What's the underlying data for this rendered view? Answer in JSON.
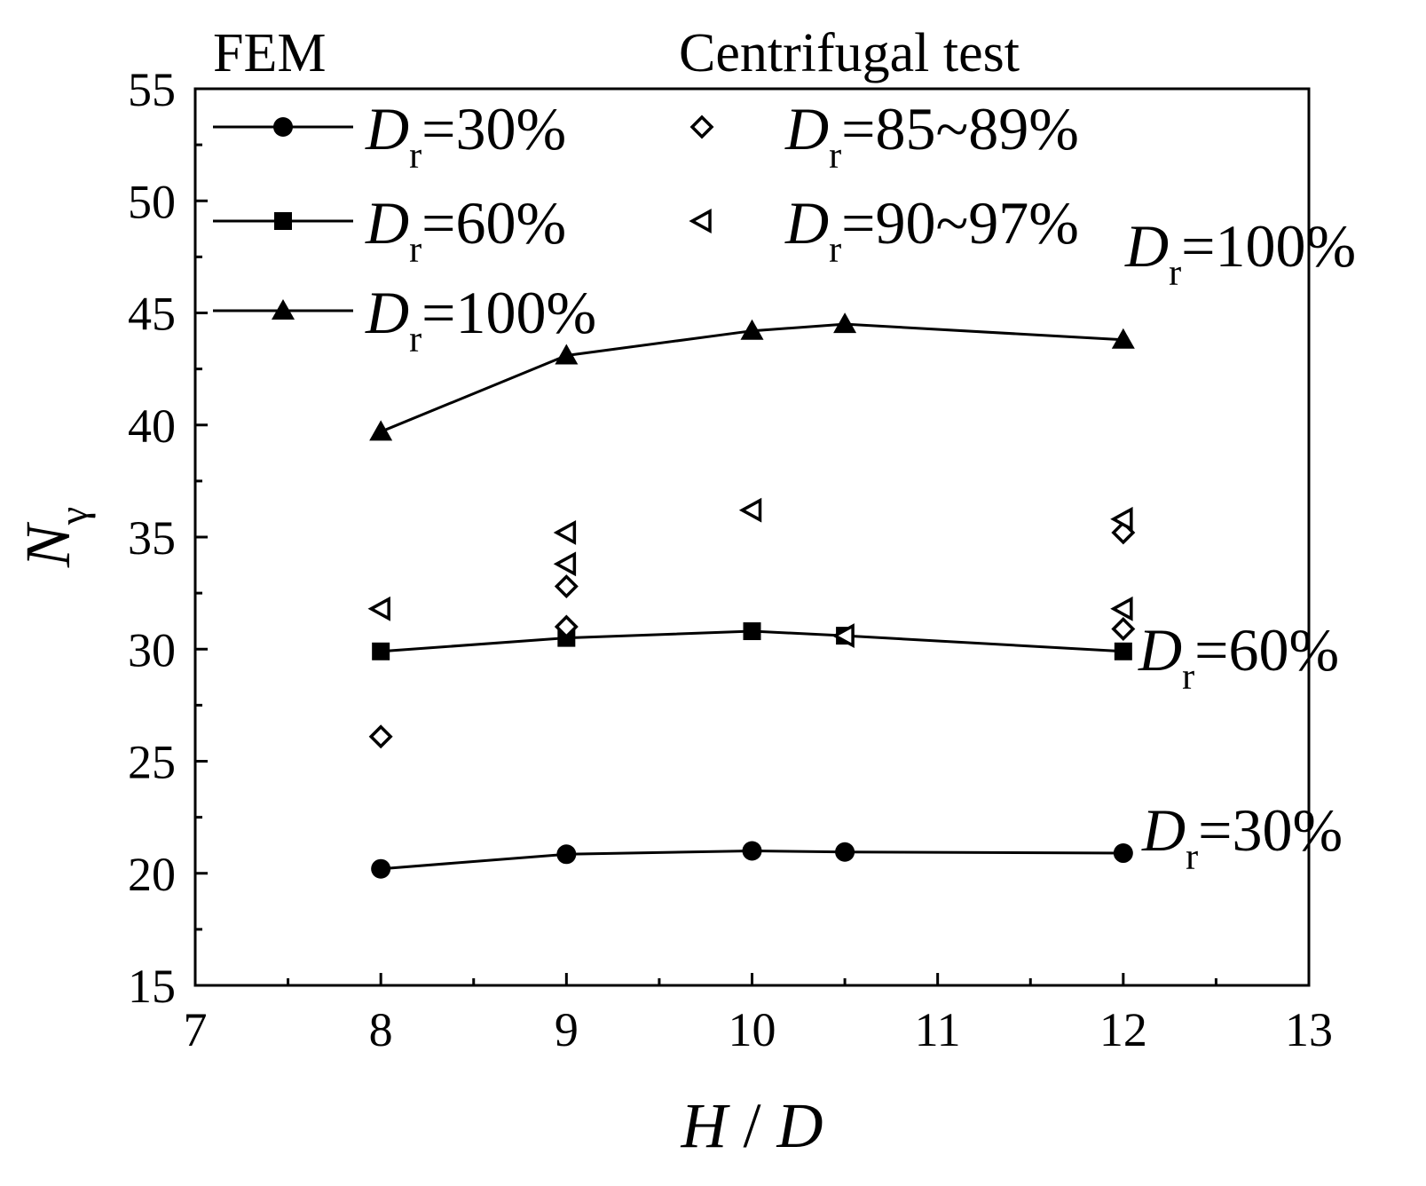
{
  "chart_data": {
    "type": "line",
    "xlabel": {
      "italic": "H",
      "rest": " / ",
      "italic2": "D"
    },
    "ylabel": {
      "main": "N",
      "sub": "γ"
    },
    "xlim": [
      7,
      13
    ],
    "ylim": [
      15,
      55
    ],
    "xticks": [
      7,
      8,
      9,
      10,
      11,
      12,
      13
    ],
    "yticks": [
      15,
      20,
      25,
      30,
      35,
      40,
      45,
      50,
      55
    ],
    "legend_group_titles": {
      "fem": "FEM",
      "test": "Centrifugal test"
    },
    "series": [
      {
        "name": "Dr=30%",
        "group": "FEM",
        "marker": "circle",
        "legend_label": {
          "italic": "D",
          "sub": "r",
          "text": "=30%"
        },
        "x": [
          8,
          9,
          10,
          10.5,
          12
        ],
        "y": [
          20.2,
          20.85,
          21.0,
          20.95,
          20.9
        ]
      },
      {
        "name": "Dr=60%",
        "group": "FEM",
        "marker": "square",
        "legend_label": {
          "italic": "D",
          "sub": "r",
          "text": "=60%"
        },
        "x": [
          8,
          9,
          10,
          10.5,
          12
        ],
        "y": [
          29.9,
          30.5,
          30.8,
          30.6,
          29.9
        ]
      },
      {
        "name": "Dr=100%",
        "group": "FEM",
        "marker": "triangle",
        "legend_label": {
          "italic": "D",
          "sub": "r",
          "text": "=100%"
        },
        "x": [
          8,
          9,
          10,
          10.5,
          12
        ],
        "y": [
          39.7,
          43.1,
          44.2,
          44.5,
          43.8
        ]
      },
      {
        "name": "Dr=85~89%",
        "group": "Centrifugal test",
        "marker": "diamond-open",
        "legend_label": {
          "italic": "D",
          "sub": "r",
          "text": "=85~89%"
        },
        "x": [
          8,
          9,
          9,
          12,
          12
        ],
        "y": [
          26.1,
          32.8,
          31.0,
          35.2,
          30.9
        ]
      },
      {
        "name": "Dr=90~97%",
        "group": "Centrifugal test",
        "marker": "triangle-left-open",
        "legend_label": {
          "italic": "D",
          "sub": "r",
          "text": "=90~97%"
        },
        "x": [
          8,
          9,
          9,
          10,
          10.5,
          12,
          12
        ],
        "y": [
          31.8,
          35.2,
          33.8,
          36.2,
          30.6,
          35.8,
          31.8
        ]
      }
    ],
    "annotations": [
      {
        "series": "Dr=100%",
        "label": {
          "italic": "D",
          "sub": "r",
          "text": "=100%"
        }
      },
      {
        "series": "Dr=60%",
        "label": {
          "italic": "D",
          "sub": "r",
          "text": "=60%"
        }
      },
      {
        "series": "Dr=30%",
        "label": {
          "italic": "D",
          "sub": "r",
          "text": "=30%"
        }
      }
    ]
  }
}
